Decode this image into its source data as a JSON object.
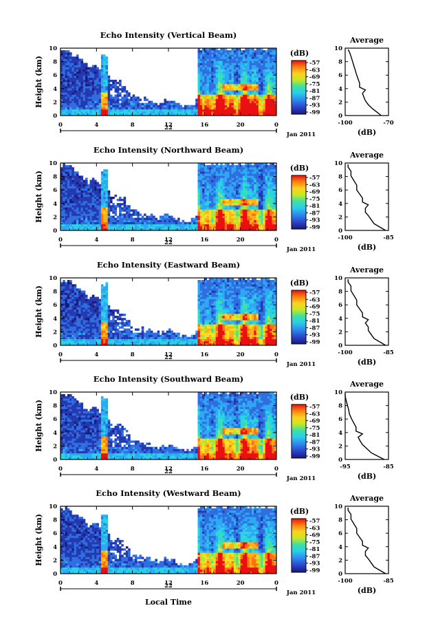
{
  "figure": {
    "bottom_xlabel": "Local Time"
  },
  "chart_data": [
    {
      "type": "heatmap",
      "title": "Echo Intensity (Vertical Beam)",
      "ylabel": "Height (km)",
      "ylim": [
        0,
        10
      ],
      "yticks": [
        "0",
        "2",
        "4",
        "6",
        "8",
        "10"
      ],
      "xlim": [
        0,
        24
      ],
      "xticks": [
        "0",
        "4",
        "8",
        "12",
        "16",
        "20",
        "0"
      ],
      "date_day": "22",
      "date_month": "Jan 2011",
      "colorbar": {
        "unit": "(dB)",
        "ticks": [
          "-57",
          "-63",
          "-69",
          "-75",
          "-81",
          "-87",
          "-93",
          "-99"
        ]
      },
      "profile": {
        "title": "Average",
        "xlabel": "(dB)",
        "xticks": [
          "-100",
          "-70"
        ],
        "ylim": [
          0,
          10
        ],
        "yticks": [
          "0",
          "2",
          "4",
          "6",
          "8",
          "10"
        ],
        "points": [
          [
            -75,
            0
          ],
          [
            -78,
            0.5
          ],
          [
            -81,
            1
          ],
          [
            -84,
            1.6
          ],
          [
            -86,
            2.2
          ],
          [
            -87,
            2.7
          ],
          [
            -88,
            3.3
          ],
          [
            -86,
            3.8
          ],
          [
            -90,
            4.2
          ],
          [
            -90,
            4.8
          ],
          [
            -91,
            5.4
          ],
          [
            -92,
            6
          ],
          [
            -93,
            6.7
          ],
          [
            -94,
            7.4
          ],
          [
            -95,
            8.1
          ],
          [
            -96,
            8.8
          ],
          [
            -97,
            9.4
          ],
          [
            -98,
            9.8
          ]
        ]
      }
    },
    {
      "type": "heatmap",
      "title": "Echo Intensity (Northward Beam)",
      "ylabel": "Height (km)",
      "ylim": [
        0,
        10
      ],
      "yticks": [
        "0",
        "2",
        "4",
        "6",
        "8",
        "10"
      ],
      "xlim": [
        0,
        24
      ],
      "xticks": [
        "0",
        "4",
        "8",
        "12",
        "16",
        "20",
        "0"
      ],
      "date_day": "22",
      "date_month": "Jan 2011",
      "colorbar": {
        "unit": "(dB)",
        "ticks": [
          "-57",
          "-63",
          "-69",
          "-75",
          "-81",
          "-87",
          "-93",
          "-99"
        ]
      },
      "profile": {
        "title": "Average",
        "xlabel": "(dB)",
        "xticks": [
          "-100",
          "-85"
        ],
        "ylim": [
          0,
          10
        ],
        "yticks": [
          "0",
          "2",
          "4",
          "6",
          "8",
          "10"
        ],
        "points": [
          [
            -86,
            0
          ],
          [
            -88,
            0.5
          ],
          [
            -90,
            1
          ],
          [
            -91,
            1.6
          ],
          [
            -92,
            2.2
          ],
          [
            -93,
            2.7
          ],
          [
            -93,
            3.3
          ],
          [
            -92,
            3.8
          ],
          [
            -94,
            4.2
          ],
          [
            -94,
            4.8
          ],
          [
            -95,
            5.4
          ],
          [
            -96,
            6
          ],
          [
            -96,
            6.7
          ],
          [
            -97,
            7.4
          ],
          [
            -98,
            8.1
          ],
          [
            -98,
            8.8
          ],
          [
            -99,
            9.4
          ],
          [
            -99,
            9.8
          ]
        ]
      }
    },
    {
      "type": "heatmap",
      "title": "Echo Intensity (Eastward Beam)",
      "ylabel": "Height (km)",
      "ylim": [
        0,
        10
      ],
      "yticks": [
        "0",
        "2",
        "4",
        "6",
        "8",
        "10"
      ],
      "xlim": [
        0,
        24
      ],
      "xticks": [
        "0",
        "4",
        "8",
        "12",
        "16",
        "20",
        "0"
      ],
      "date_day": "22",
      "date_month": "Jan 2011",
      "colorbar": {
        "unit": "(dB)",
        "ticks": [
          "-57",
          "-63",
          "-69",
          "-75",
          "-81",
          "-87",
          "-93",
          "-99"
        ]
      },
      "profile": {
        "title": "Average",
        "xlabel": "(dB)",
        "xticks": [
          "-100",
          "-85"
        ],
        "ylim": [
          0,
          10
        ],
        "yticks": [
          "0",
          "2",
          "4",
          "6",
          "8",
          "10"
        ],
        "points": [
          [
            -86,
            0
          ],
          [
            -88,
            0.5
          ],
          [
            -90,
            1
          ],
          [
            -91,
            1.6
          ],
          [
            -92,
            2.2
          ],
          [
            -92,
            2.7
          ],
          [
            -93,
            3.3
          ],
          [
            -92,
            3.8
          ],
          [
            -94,
            4.2
          ],
          [
            -94,
            4.8
          ],
          [
            -95,
            5.4
          ],
          [
            -96,
            6
          ],
          [
            -96,
            6.7
          ],
          [
            -97,
            7.4
          ],
          [
            -98,
            8.1
          ],
          [
            -98,
            8.8
          ],
          [
            -99,
            9.4
          ],
          [
            -99,
            9.8
          ]
        ]
      }
    },
    {
      "type": "heatmap",
      "title": "Echo Intensity (Southward Beam)",
      "ylabel": "Height (km)",
      "ylim": [
        0,
        10
      ],
      "yticks": [
        "0",
        "2",
        "4",
        "6",
        "8",
        "10"
      ],
      "xlim": [
        0,
        24
      ],
      "xticks": [
        "0",
        "4",
        "8",
        "12",
        "16",
        "20",
        "0"
      ],
      "date_day": "22",
      "date_month": "Jan 2011",
      "colorbar": {
        "unit": "(dB)",
        "ticks": [
          "-57",
          "-63",
          "-69",
          "-75",
          "-81",
          "-87",
          "-93",
          "-99"
        ]
      },
      "profile": {
        "title": "Average",
        "xlabel": "(dB)",
        "xticks": [
          "-95",
          "-85"
        ],
        "ylim": [
          0,
          10
        ],
        "yticks": [
          "0",
          "2",
          "4",
          "6",
          "8",
          "10"
        ],
        "points": [
          [
            -86,
            0
          ],
          [
            -87.5,
            0.5
          ],
          [
            -89,
            1
          ],
          [
            -90,
            1.6
          ],
          [
            -91,
            2.2
          ],
          [
            -91.5,
            2.7
          ],
          [
            -92,
            3.3
          ],
          [
            -91,
            3.8
          ],
          [
            -92.5,
            4.2
          ],
          [
            -92.5,
            4.8
          ],
          [
            -93,
            5.4
          ],
          [
            -93.5,
            6
          ],
          [
            -94,
            6.7
          ],
          [
            -94.2,
            7.4
          ],
          [
            -94.5,
            8.1
          ],
          [
            -94.8,
            8.8
          ],
          [
            -95,
            9.4
          ],
          [
            -95,
            9.8
          ]
        ]
      }
    },
    {
      "type": "heatmap",
      "title": "Echo Intensity (Westward Beam)",
      "ylabel": "Height (km)",
      "ylim": [
        0,
        10
      ],
      "yticks": [
        "0",
        "2",
        "4",
        "6",
        "8",
        "10"
      ],
      "xlim": [
        0,
        24
      ],
      "xticks": [
        "0",
        "4",
        "8",
        "12",
        "16",
        "20",
        "0"
      ],
      "date_day": "22",
      "date_month": "Jan 2011",
      "colorbar": {
        "unit": "(dB)",
        "ticks": [
          "-57",
          "-63",
          "-69",
          "-75",
          "-81",
          "-87",
          "-93",
          "-99"
        ]
      },
      "profile": {
        "title": "Average",
        "xlabel": "(dB)",
        "xticks": [
          "-100",
          "-85"
        ],
        "ylim": [
          0,
          10
        ],
        "yticks": [
          "0",
          "2",
          "4",
          "6",
          "8",
          "10"
        ],
        "points": [
          [
            -86,
            0
          ],
          [
            -88,
            0.5
          ],
          [
            -90,
            1
          ],
          [
            -91,
            1.6
          ],
          [
            -92,
            2.2
          ],
          [
            -93,
            2.7
          ],
          [
            -93,
            3.3
          ],
          [
            -92,
            3.8
          ],
          [
            -94,
            4.2
          ],
          [
            -94,
            4.8
          ],
          [
            -95,
            5.4
          ],
          [
            -96,
            6
          ],
          [
            -96,
            6.7
          ],
          [
            -97,
            7.4
          ],
          [
            -98,
            8.1
          ],
          [
            -98,
            8.8
          ],
          [
            -99,
            9.4
          ],
          [
            -99,
            9.8
          ]
        ]
      }
    }
  ]
}
